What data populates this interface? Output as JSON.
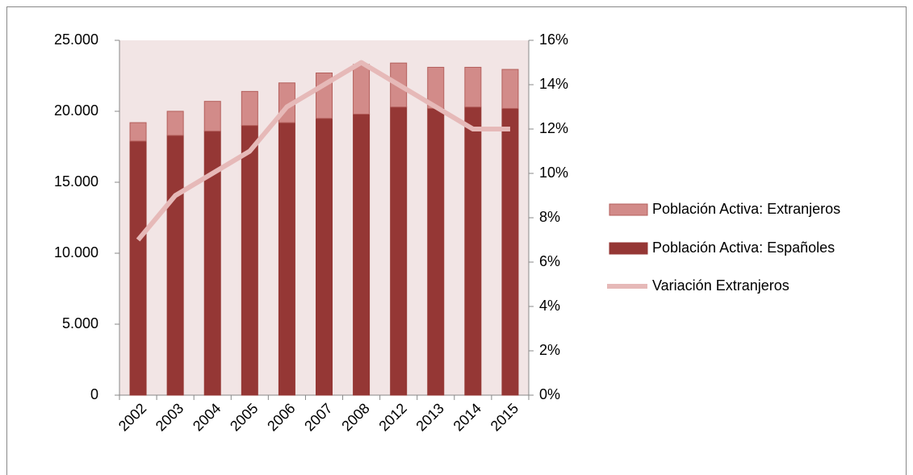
{
  "chart_data": {
    "type": "bar",
    "stacked": true,
    "categories": [
      "2002",
      "2003",
      "2004",
      "2005",
      "2006",
      "2007",
      "2008",
      "2012",
      "2013",
      "2014",
      "2015"
    ],
    "series": [
      {
        "name": "Población Activa: Españoles",
        "type": "bar",
        "color": "#953735",
        "values": [
          17900,
          18300,
          18600,
          19000,
          19200,
          19500,
          19800,
          20300,
          20200,
          20300,
          20200
        ]
      },
      {
        "name": "Población Activa: Extranjeros",
        "type": "bar",
        "color": "#d28b89",
        "values": [
          1300,
          1700,
          2100,
          2400,
          2800,
          3200,
          3500,
          3100,
          2900,
          2800,
          2750
        ]
      },
      {
        "name": "Variación Extranjeros",
        "type": "line",
        "axis": "y2",
        "color": "#e6b9b8",
        "values": [
          7,
          9,
          10,
          11,
          13,
          14,
          15,
          14,
          13,
          12,
          12
        ]
      }
    ],
    "ylim": [
      0,
      25000
    ],
    "yticks": [
      {
        "value": 0,
        "label": "0"
      },
      {
        "value": 5000,
        "label": "5.000"
      },
      {
        "value": 10000,
        "label": "10.000"
      },
      {
        "value": 15000,
        "label": "15.000"
      },
      {
        "value": 20000,
        "label": "20.000"
      },
      {
        "value": 25000,
        "label": "25.000"
      }
    ],
    "y2lim": [
      0,
      16
    ],
    "y2ticks": [
      {
        "value": 0,
        "label": "0%"
      },
      {
        "value": 2,
        "label": "2%"
      },
      {
        "value": 4,
        "label": "4%"
      },
      {
        "value": 6,
        "label": "6%"
      },
      {
        "value": 8,
        "label": "8%"
      },
      {
        "value": 10,
        "label": "10%"
      },
      {
        "value": 12,
        "label": "12%"
      },
      {
        "value": 14,
        "label": "14%"
      },
      {
        "value": 16,
        "label": "16%"
      }
    ],
    "legend": "right",
    "plot_background": "#f2e5e5"
  }
}
